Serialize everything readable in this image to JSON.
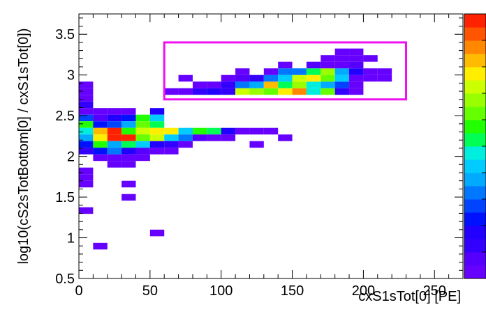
{
  "chart_data": {
    "type": "heatmap",
    "title": "",
    "xlabel": "cxS1sTot[0]  [PE]",
    "ylabel": "log10(cS2sTotBottom[0] / cxS1sTot[0])",
    "xlim": [
      0,
      270
    ],
    "ylim": [
      0.5,
      3.75
    ],
    "x_ticks": [
      0,
      50,
      100,
      150,
      200,
      250
    ],
    "y_ticks": [
      0.5,
      1,
      1.5,
      2,
      2.5,
      3,
      3.5
    ],
    "x_tick_labels": [
      "0",
      "50",
      "100",
      "150",
      "200",
      "250"
    ],
    "y_tick_labels": [
      "0.5",
      "1",
      "1.5",
      "2",
      "2.5",
      "3",
      "3.5"
    ],
    "bin_width_x": 10,
    "bin_width_y": 0.08125,
    "color_scale": "rainbow",
    "palette": [
      "#6600ff",
      "#5500ff",
      "#3300ff",
      "#2200ff",
      "#0011ff",
      "#0044ff",
      "#0077ff",
      "#00aaff",
      "#00ccff",
      "#00eedd",
      "#00ff99",
      "#00ff55",
      "#22ff00",
      "#66ff00",
      "#99ff00",
      "#ccff00",
      "#ffee00",
      "#ffbb00",
      "#ff8800",
      "#ff5500",
      "#ff2200"
    ],
    "cells": [
      [
        0,
        2.8375,
        1
      ],
      [
        0,
        2.7563,
        1
      ],
      [
        0,
        2.675,
        1
      ],
      [
        0,
        2.5938,
        3
      ],
      [
        0,
        2.5125,
        1
      ],
      [
        0,
        2.4313,
        6
      ],
      [
        0,
        2.35,
        12
      ],
      [
        0,
        2.2688,
        10
      ],
      [
        0,
        2.1875,
        8
      ],
      [
        0,
        2.1063,
        5
      ],
      [
        0,
        2.025,
        3
      ],
      [
        0,
        1.7813,
        1
      ],
      [
        0,
        1.7,
        1
      ],
      [
        0,
        1.6188,
        1
      ],
      [
        0,
        1.2938,
        1
      ],
      [
        10,
        2.5125,
        1
      ],
      [
        10,
        2.4313,
        2
      ],
      [
        10,
        2.35,
        5
      ],
      [
        10,
        2.2688,
        17
      ],
      [
        10,
        2.1875,
        16
      ],
      [
        10,
        2.1063,
        12
      ],
      [
        10,
        2.025,
        5
      ],
      [
        10,
        1.9438,
        1
      ],
      [
        10,
        0.8563,
        1
      ],
      [
        20,
        2.5125,
        1
      ],
      [
        20,
        2.4313,
        4
      ],
      [
        20,
        2.35,
        6
      ],
      [
        20,
        2.2688,
        20
      ],
      [
        20,
        2.1875,
        20
      ],
      [
        20,
        2.1063,
        8
      ],
      [
        20,
        2.025,
        7
      ],
      [
        20,
        1.9438,
        1
      ],
      [
        20,
        1.8625,
        1
      ],
      [
        30,
        2.5125,
        1
      ],
      [
        30,
        2.4313,
        5
      ],
      [
        30,
        2.35,
        8
      ],
      [
        30,
        2.2688,
        12
      ],
      [
        30,
        2.1875,
        20
      ],
      [
        30,
        2.1063,
        11
      ],
      [
        30,
        2.025,
        4
      ],
      [
        30,
        1.9438,
        1
      ],
      [
        30,
        1.8625,
        1
      ],
      [
        30,
        1.6188,
        1
      ],
      [
        30,
        1.4563,
        1
      ],
      [
        40,
        2.4313,
        12
      ],
      [
        40,
        2.35,
        13
      ],
      [
        40,
        2.2688,
        15
      ],
      [
        40,
        2.1875,
        13
      ],
      [
        40,
        2.1063,
        9
      ],
      [
        40,
        2.025,
        2
      ],
      [
        40,
        1.9438,
        1
      ],
      [
        50,
        2.5125,
        4
      ],
      [
        50,
        2.4313,
        9
      ],
      [
        50,
        2.35,
        11
      ],
      [
        50,
        2.2688,
        16
      ],
      [
        50,
        2.1875,
        15
      ],
      [
        50,
        2.1063,
        4
      ],
      [
        50,
        2.025,
        1
      ],
      [
        50,
        1.0188,
        1
      ],
      [
        60,
        2.2688,
        16
      ],
      [
        60,
        2.1875,
        9
      ],
      [
        60,
        2.1063,
        3
      ],
      [
        60,
        2.025,
        1
      ],
      [
        60,
        2.7563,
        1
      ],
      [
        70,
        2.2688,
        9
      ],
      [
        70,
        2.1875,
        7
      ],
      [
        70,
        2.1063,
        1
      ],
      [
        70,
        2.7563,
        1
      ],
      [
        70,
        2.9188,
        1
      ],
      [
        80,
        2.2688,
        12
      ],
      [
        80,
        2.1875,
        2
      ],
      [
        80,
        2.7563,
        3
      ],
      [
        80,
        2.8375,
        1
      ],
      [
        90,
        2.2688,
        11
      ],
      [
        90,
        2.1875,
        1
      ],
      [
        90,
        2.7563,
        4
      ],
      [
        90,
        2.8375,
        1
      ],
      [
        100,
        2.2688,
        4
      ],
      [
        100,
        2.1875,
        1
      ],
      [
        100,
        2.7563,
        3
      ],
      [
        100,
        2.8375,
        3
      ],
      [
        100,
        2.9188,
        1
      ],
      [
        110,
        2.2688,
        1
      ],
      [
        110,
        2.7563,
        15
      ],
      [
        110,
        2.8375,
        7
      ],
      [
        110,
        2.9188,
        2
      ],
      [
        110,
        3.0,
        1
      ],
      [
        120,
        2.2688,
        1
      ],
      [
        120,
        2.1063,
        1
      ],
      [
        120,
        2.7563,
        14
      ],
      [
        120,
        2.8375,
        8
      ],
      [
        120,
        2.9188,
        3
      ],
      [
        130,
        2.2688,
        1
      ],
      [
        130,
        2.7563,
        13
      ],
      [
        130,
        2.8375,
        17
      ],
      [
        130,
        2.9188,
        7
      ],
      [
        130,
        3.0,
        1
      ],
      [
        140,
        2.1875,
        1
      ],
      [
        140,
        2.7563,
        16
      ],
      [
        140,
        2.8375,
        11
      ],
      [
        140,
        2.9188,
        9
      ],
      [
        140,
        3.0,
        7
      ],
      [
        140,
        3.0813,
        1
      ],
      [
        150,
        2.7563,
        18
      ],
      [
        150,
        2.8375,
        14
      ],
      [
        150,
        2.9188,
        15
      ],
      [
        150,
        3.0,
        7
      ],
      [
        160,
        2.7563,
        10
      ],
      [
        160,
        2.8375,
        10
      ],
      [
        160,
        2.9188,
        16
      ],
      [
        160,
        3.0,
        11
      ],
      [
        160,
        3.0813,
        2
      ],
      [
        170,
        2.7563,
        13
      ],
      [
        170,
        2.8375,
        8
      ],
      [
        170,
        2.9188,
        13
      ],
      [
        170,
        3.0,
        14
      ],
      [
        170,
        3.0813,
        1
      ],
      [
        170,
        3.1625,
        1
      ],
      [
        180,
        2.7563,
        3
      ],
      [
        180,
        2.8375,
        6
      ],
      [
        180,
        2.9188,
        9
      ],
      [
        180,
        3.0,
        8
      ],
      [
        180,
        3.0813,
        1
      ],
      [
        180,
        3.1625,
        1
      ],
      [
        180,
        3.2438,
        1
      ],
      [
        190,
        2.7563,
        1
      ],
      [
        190,
        2.8375,
        1
      ],
      [
        190,
        2.9188,
        1
      ],
      [
        190,
        3.0,
        4
      ],
      [
        190,
        3.0813,
        2
      ],
      [
        190,
        3.1625,
        1
      ],
      [
        190,
        3.2438,
        1
      ],
      [
        200,
        2.9188,
        1
      ],
      [
        200,
        3.0,
        1
      ],
      [
        200,
        3.1625,
        1
      ],
      [
        210,
        2.9188,
        1
      ],
      [
        210,
        3.0,
        1
      ]
    ],
    "selection_box": {
      "x": [
        60,
        230
      ],
      "y": [
        2.7,
        3.4
      ],
      "color": "#ee11ee"
    },
    "colorbar_steps": 20,
    "frame_color": "#000000"
  }
}
